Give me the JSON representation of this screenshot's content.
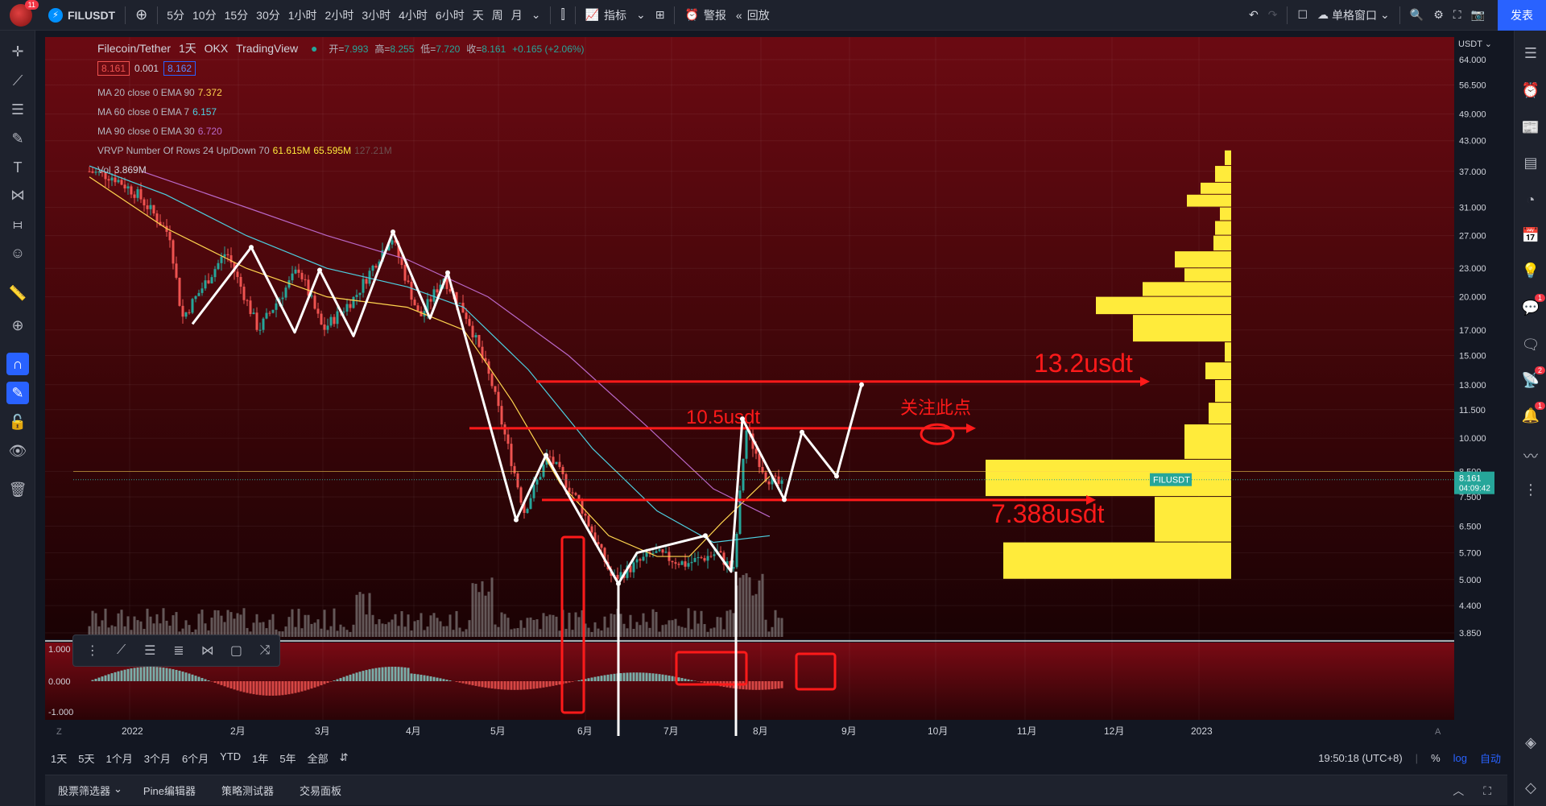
{
  "topbar": {
    "avatar_badge": "11",
    "symbol": "FILUSDT",
    "timeframes": [
      "5分",
      "10分",
      "15分",
      "30分",
      "1小时",
      "2小时",
      "3小时",
      "4小时",
      "6小时",
      "天",
      "周",
      "月"
    ],
    "active_timeframe": "天",
    "indicators_label": "指标",
    "alert_label": "警报",
    "replay_label": "回放",
    "layout_label": "单格窗口",
    "publish_label": "发表"
  },
  "legend": {
    "title": "Filecoin/Tether",
    "interval": "1天",
    "exchange": "OKX",
    "source": "TradingView",
    "open_label": "开=",
    "open": "7.993",
    "high_label": "高=",
    "high": "8.255",
    "low_label": "低=",
    "low": "7.720",
    "close_label": "收=",
    "close": "8.161",
    "change": "+0.165 (+2.06%)",
    "bid": "8.161",
    "spread": "0.001",
    "ask": "8.162",
    "ma1": {
      "label": "MA 20 close 0 EMA 90",
      "value": "7.372"
    },
    "ma2": {
      "label": "MA 60 close 0 EMA 7",
      "value": "6.157"
    },
    "ma3": {
      "label": "MA 90 close 0 EMA 30",
      "value": "6.720"
    },
    "vrvp": {
      "label": "VRVP Number Of Rows 24 Up/Down 70",
      "up": "61.615M",
      "down": "65.595M",
      "total": "127.21M"
    },
    "vol": {
      "label": "Vol",
      "value": "3.869M"
    }
  },
  "chart_data": {
    "type": "candlestick",
    "symbol": "FILUSDT",
    "currency": "USDT",
    "scale": "log",
    "price_ticks": [
      64.0,
      56.5,
      49.0,
      43.0,
      37.0,
      31.0,
      27.0,
      23.0,
      20.0,
      17.0,
      15.0,
      13.0,
      11.5,
      10.0,
      8.5,
      7.5,
      6.5,
      5.7,
      5.0,
      4.4,
      3.85
    ],
    "price_tick_labels": [
      "64.000",
      "56.500",
      "49.000",
      "43.000",
      "37.000",
      "31.000",
      "27.000",
      "23.000",
      "20.000",
      "17.000",
      "15.000",
      "13.000",
      "11.500",
      "10.000",
      "8.500",
      "7.500",
      "6.500",
      "5.700",
      "5.000",
      "4.400",
      "3.850"
    ],
    "month_labels": [
      "2022",
      "2月",
      "3月",
      "4月",
      "5月",
      "6月",
      "7月",
      "8月",
      "9月",
      "10月",
      "11月",
      "12月",
      "2023"
    ],
    "macd_ticks": [
      "1.000",
      "0.000",
      "-1.000"
    ],
    "current_price_label": "FILUSDT",
    "current_price": "8.161",
    "countdown": "04:09:42",
    "annotations": [
      {
        "text": "13.2usdt",
        "price": 13.2
      },
      {
        "text": "10.5usdt",
        "price": 10.5
      },
      {
        "text": "关注此点",
        "price": 10.5
      },
      {
        "text": "7.388usdt",
        "price": 7.388
      }
    ],
    "zigzag_prices": [
      17.5,
      25.5,
      16.8,
      22.8,
      16.5,
      27.5,
      18.0,
      22.5,
      6.7,
      9.0,
      4.9,
      5.8,
      6.2,
      5.2,
      11.0,
      7.4,
      10.5,
      8.2,
      13.0
    ],
    "colors": {
      "up": "#26a69a",
      "down": "#ef5350",
      "annotation": "#ff1a1a",
      "arrow": "#ffffff",
      "vrvp": "#ffeb3b"
    }
  },
  "rangebar": {
    "ranges": [
      "1天",
      "5天",
      "1个月",
      "3个月",
      "6个月",
      "YTD",
      "1年",
      "5年",
      "全部"
    ],
    "time": "19:50:18 (UTC+8)",
    "percent": "%",
    "log": "log",
    "auto": "自动"
  },
  "footer": {
    "tabs": [
      "股票筛选器",
      "Pine编辑器",
      "策略测试器",
      "交易面板"
    ]
  },
  "right_badges": {
    "b1": "1",
    "b2": "2",
    "b3": "1"
  },
  "usdt_label": "USDT"
}
